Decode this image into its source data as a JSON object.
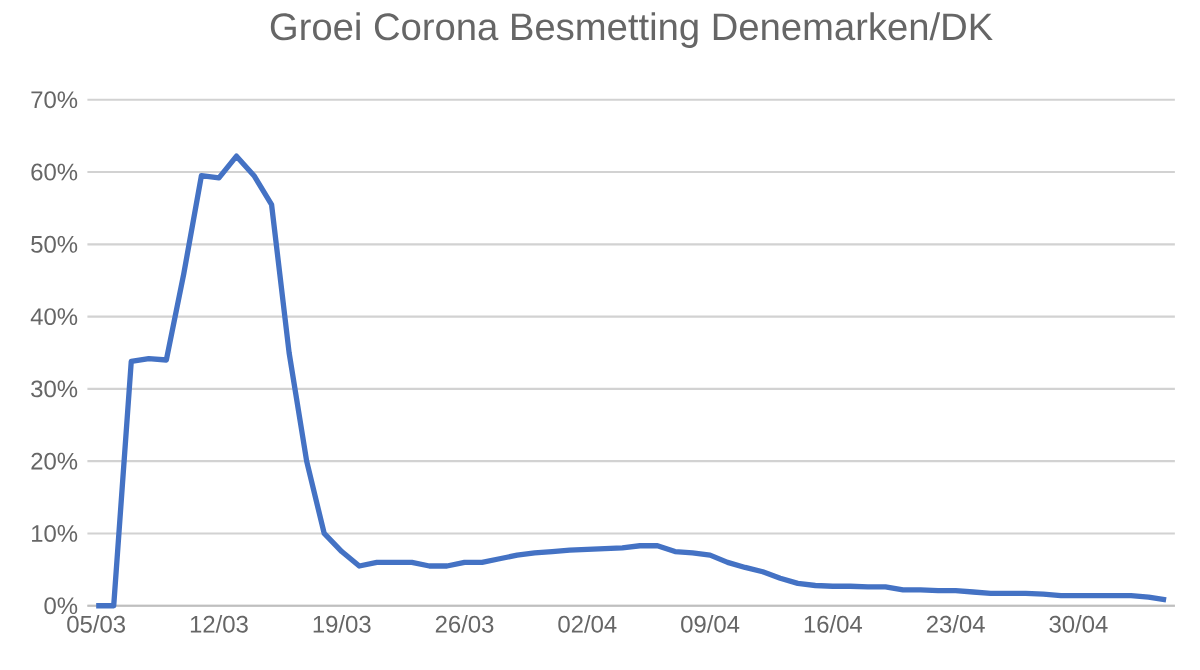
{
  "chart_data": {
    "type": "line",
    "title": "Groei Corona Besmetting Denemarken/DK",
    "categories": [
      "05/03",
      null,
      null,
      null,
      null,
      null,
      null,
      "12/03",
      null,
      null,
      null,
      null,
      null,
      null,
      "19/03",
      null,
      null,
      null,
      null,
      null,
      null,
      "26/03",
      null,
      null,
      null,
      null,
      null,
      null,
      "02/04",
      null,
      null,
      null,
      null,
      null,
      null,
      "09/04",
      null,
      null,
      null,
      null,
      null,
      null,
      "16/04",
      null,
      null,
      null,
      null,
      null,
      null,
      "23/04",
      null,
      null,
      null,
      null,
      null,
      null,
      "30/04",
      null,
      null,
      null,
      null,
      null
    ],
    "series": [
      {
        "color": "#4472c4",
        "values": [
          0,
          0,
          33.8,
          34.2,
          34,
          46,
          59.5,
          59.2,
          62.2,
          59.5,
          55.5,
          35,
          20,
          10,
          7.5,
          5.5,
          6,
          6,
          6,
          5.5,
          5.5,
          6,
          6,
          6.5,
          7,
          7.3,
          7.5,
          7.7,
          7.8,
          7.9,
          8,
          8.3,
          8.3,
          7.5,
          7.3,
          7,
          6,
          5.3,
          4.7,
          3.8,
          3.1,
          2.8,
          2.7,
          2.7,
          2.6,
          2.6,
          2.2,
          2.2,
          2.1,
          2.1,
          1.9,
          1.7,
          1.7,
          1.7,
          1.6,
          1.4,
          1.4,
          1.4,
          1.4,
          1.4,
          1.2,
          0.8
        ]
      }
    ],
    "ylim": [
      0,
      70
    ],
    "yticks": [
      {
        "value": 0,
        "label": "0%"
      },
      {
        "value": 10,
        "label": "10%"
      },
      {
        "value": 20,
        "label": "20%"
      },
      {
        "value": 30,
        "label": "30%"
      },
      {
        "value": 40,
        "label": "40%"
      },
      {
        "value": 50,
        "label": "50%"
      },
      {
        "value": 60,
        "label": "60%"
      },
      {
        "value": 70,
        "label": "70%"
      }
    ],
    "grid": "y",
    "marker": "none",
    "line_style": "solid"
  }
}
